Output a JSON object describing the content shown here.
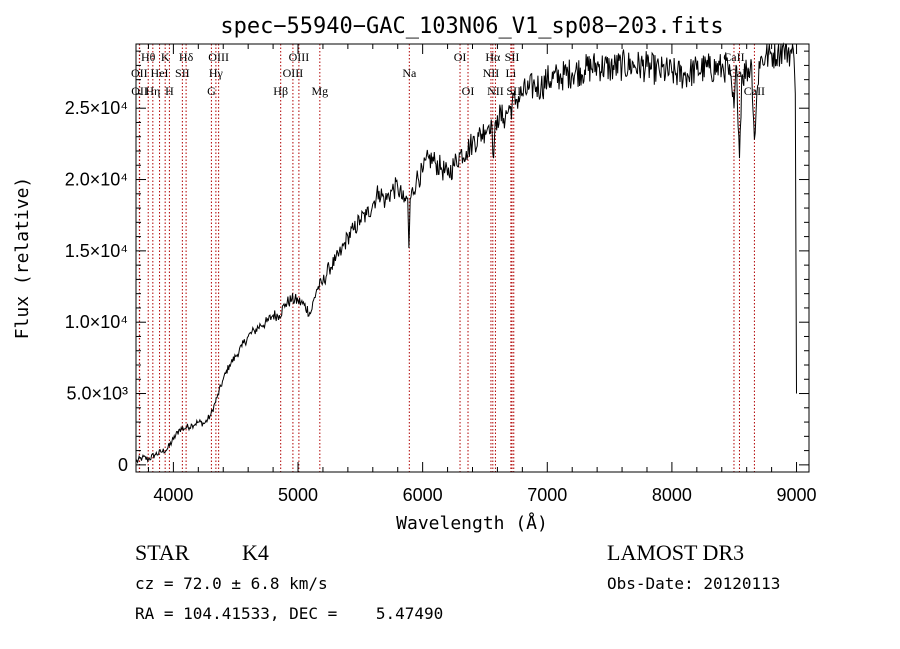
{
  "chart_data": {
    "type": "line",
    "title": "spec−55940−GAC_103N06_V1_sp08−203.fits",
    "xlabel": "Wavelength (Å)",
    "ylabel": "Flux (relative)",
    "xlim": [
      3700,
      9100
    ],
    "ylim": [
      -500,
      29500
    ],
    "xticks": [
      4000,
      5000,
      6000,
      7000,
      8000,
      9000
    ],
    "yticks": [
      {
        "value": 0,
        "label": "0"
      },
      {
        "value": 5000,
        "label": "5.0×10³"
      },
      {
        "value": 10000,
        "label": "1.0×10⁴"
      },
      {
        "value": 15000,
        "label": "1.5×10⁴"
      },
      {
        "value": 20000,
        "label": "2.0×10⁴"
      },
      {
        "value": 25000,
        "label": "2.5×10⁴"
      }
    ],
    "spectrum": {
      "x": [
        3700,
        3750,
        3800,
        3850,
        3900,
        3950,
        4000,
        4050,
        4100,
        4150,
        4200,
        4250,
        4300,
        4350,
        4400,
        4450,
        4500,
        4550,
        4600,
        4650,
        4700,
        4750,
        4800,
        4850,
        4900,
        4950,
        5000,
        5050,
        5100,
        5150,
        5200,
        5250,
        5300,
        5350,
        5400,
        5450,
        5500,
        5550,
        5600,
        5650,
        5700,
        5750,
        5800,
        5850,
        5880,
        5890,
        5900,
        5950,
        6000,
        6050,
        6100,
        6150,
        6200,
        6250,
        6300,
        6350,
        6400,
        6450,
        6500,
        6550,
        6563,
        6600,
        6650,
        6700,
        6750,
        6800,
        6850,
        6900,
        6950,
        7000,
        7100,
        7200,
        7300,
        7400,
        7500,
        7600,
        7700,
        7800,
        7900,
        8000,
        8100,
        8200,
        8300,
        8400,
        8450,
        8498,
        8520,
        8542,
        8560,
        8600,
        8640,
        8662,
        8700,
        8750,
        8800,
        8850,
        8900,
        8950,
        8980,
        8990,
        9000
      ],
      "y": [
        200,
        500,
        400,
        700,
        900,
        1100,
        1800,
        2500,
        2600,
        2800,
        3000,
        2900,
        3500,
        4700,
        6000,
        7000,
        7600,
        8300,
        9000,
        9400,
        9800,
        10000,
        10500,
        10500,
        11300,
        11600,
        11500,
        11200,
        10600,
        12300,
        12800,
        13800,
        14300,
        15000,
        16000,
        16500,
        17200,
        17500,
        18300,
        19200,
        18500,
        19200,
        19500,
        18400,
        18700,
        15200,
        18600,
        20000,
        20500,
        21500,
        21200,
        20800,
        20300,
        21000,
        21800,
        22000,
        22600,
        23000,
        23500,
        24200,
        21800,
        24500,
        24300,
        25000,
        25600,
        26000,
        26300,
        26600,
        26500,
        27000,
        27200,
        27500,
        27700,
        28000,
        27800,
        28000,
        28000,
        27900,
        27600,
        27500,
        27300,
        27700,
        27800,
        27800,
        27900,
        25000,
        27900,
        21500,
        27200,
        27700,
        28000,
        22800,
        28300,
        28600,
        28800,
        29000,
        29200,
        29000,
        28500,
        26000,
        5000
      ]
    },
    "spectral_lines": [
      {
        "name": "Hθ",
        "wavelength": 3798,
        "row": 1
      },
      {
        "name": "OII",
        "wavelength": 3727,
        "row": 2
      },
      {
        "name": "OII",
        "wavelength": 3729,
        "row": 3
      },
      {
        "name": "Hη",
        "wavelength": 3835,
        "row": 3
      },
      {
        "name": "HeI",
        "wavelength": 3889,
        "row": 2
      },
      {
        "name": "K",
        "wavelength": 3934,
        "row": 1
      },
      {
        "name": "H",
        "wavelength": 3968,
        "row": 3
      },
      {
        "name": "SII",
        "wavelength": 4072,
        "row": 2
      },
      {
        "name": "Hδ",
        "wavelength": 4102,
        "row": 1
      },
      {
        "name": "OIII",
        "wavelength": 4363,
        "row": 1
      },
      {
        "name": "Hγ",
        "wavelength": 4341,
        "row": 2
      },
      {
        "name": "G",
        "wavelength": 4305,
        "row": 3
      },
      {
        "name": "Hβ",
        "wavelength": 4861,
        "row": 3
      },
      {
        "name": "OIII",
        "wavelength": 5007,
        "row": 1
      },
      {
        "name": "OIII",
        "wavelength": 4959,
        "row": 2
      },
      {
        "name": "Mg",
        "wavelength": 5175,
        "row": 3
      },
      {
        "name": "Na",
        "wavelength": 5893,
        "row": 2
      },
      {
        "name": "OI",
        "wavelength": 6300,
        "row": 1
      },
      {
        "name": "OI",
        "wavelength": 6364,
        "row": 3
      },
      {
        "name": "Hα",
        "wavelength": 6563,
        "row": 1
      },
      {
        "name": "NII",
        "wavelength": 6548,
        "row": 2
      },
      {
        "name": "NII",
        "wavelength": 6584,
        "row": 3
      },
      {
        "name": "SII",
        "wavelength": 6717,
        "row": 1
      },
      {
        "name": "Li",
        "wavelength": 6708,
        "row": 2
      },
      {
        "name": "SII",
        "wavelength": 6731,
        "row": 3
      },
      {
        "name": "CaII",
        "wavelength": 8498,
        "row": 1
      },
      {
        "name": "CaII",
        "wavelength": 8542,
        "row": 2
      },
      {
        "name": "CaII",
        "wavelength": 8662,
        "row": 3
      }
    ],
    "line_color": "#000000",
    "marker_color": "#b00000"
  },
  "info": {
    "object_class": "STAR",
    "subclass": "K4",
    "survey": "LAMOST DR3",
    "redshift": "cz = 72.0 ± 6.8 km/s",
    "obs_date": "Obs-Date: 20120113",
    "coords": "RA = 104.41533, DEC =    5.47490"
  }
}
